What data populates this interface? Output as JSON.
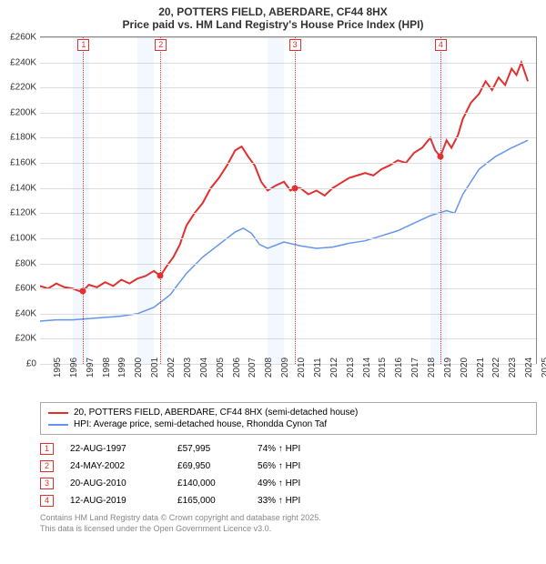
{
  "title": {
    "line1": "20, POTTERS FIELD, ABERDARE, CF44 8HX",
    "line2": "Price paid vs. HM Land Registry's House Price Index (HPI)"
  },
  "chart": {
    "type": "line",
    "background_color": "#ffffff",
    "grid_color": "#dddddd",
    "axis_color": "#888888",
    "band_color": "rgba(100,149,237,0.08)",
    "x_min": 1995,
    "x_max": 2025.5,
    "xtick_step": 1,
    "y_min": 0,
    "y_max": 260000,
    "ytick_step": 20000,
    "ytick_labels": [
      "£0",
      "£20K",
      "£40K",
      "£60K",
      "£80K",
      "£100K",
      "£120K",
      "£140K",
      "£160K",
      "£180K",
      "£200K",
      "£220K",
      "£240K",
      "£260K"
    ],
    "xtick_labels": [
      "1995",
      "1996",
      "1997",
      "1998",
      "1999",
      "2000",
      "2001",
      "2002",
      "2003",
      "2004",
      "2005",
      "2006",
      "2007",
      "2008",
      "2009",
      "2010",
      "2011",
      "2012",
      "2013",
      "2014",
      "2015",
      "2016",
      "2017",
      "2018",
      "2019",
      "2020",
      "2021",
      "2022",
      "2023",
      "2024",
      "2025"
    ],
    "series": {
      "price_paid": {
        "color": "#e03030",
        "width": 2,
        "points": [
          [
            1995,
            62000
          ],
          [
            1995.5,
            60000
          ],
          [
            1996,
            64000
          ],
          [
            1996.5,
            61000
          ],
          [
            1997,
            60000
          ],
          [
            1997.4,
            58000
          ],
          [
            1997.65,
            57995
          ],
          [
            1998,
            63000
          ],
          [
            1998.5,
            61000
          ],
          [
            1999,
            65000
          ],
          [
            1999.5,
            62000
          ],
          [
            2000,
            67000
          ],
          [
            2000.5,
            64000
          ],
          [
            2001,
            68000
          ],
          [
            2001.5,
            70000
          ],
          [
            2002,
            74000
          ],
          [
            2002.4,
            69950
          ],
          [
            2002.8,
            78000
          ],
          [
            2003.2,
            85000
          ],
          [
            2003.6,
            95000
          ],
          [
            2004,
            110000
          ],
          [
            2004.5,
            120000
          ],
          [
            2005,
            128000
          ],
          [
            2005.5,
            140000
          ],
          [
            2006,
            148000
          ],
          [
            2006.5,
            158000
          ],
          [
            2007,
            170000
          ],
          [
            2007.4,
            173000
          ],
          [
            2007.8,
            165000
          ],
          [
            2008.2,
            158000
          ],
          [
            2008.6,
            145000
          ],
          [
            2009,
            138000
          ],
          [
            2009.5,
            142000
          ],
          [
            2010,
            145000
          ],
          [
            2010.4,
            138000
          ],
          [
            2010.65,
            140000
          ],
          [
            2011,
            140000
          ],
          [
            2011.5,
            135000
          ],
          [
            2012,
            138000
          ],
          [
            2012.5,
            134000
          ],
          [
            2013,
            140000
          ],
          [
            2013.5,
            144000
          ],
          [
            2014,
            148000
          ],
          [
            2014.5,
            150000
          ],
          [
            2015,
            152000
          ],
          [
            2015.5,
            150000
          ],
          [
            2016,
            155000
          ],
          [
            2016.5,
            158000
          ],
          [
            2017,
            162000
          ],
          [
            2017.5,
            160000
          ],
          [
            2018,
            168000
          ],
          [
            2018.5,
            172000
          ],
          [
            2019,
            180000
          ],
          [
            2019.3,
            170000
          ],
          [
            2019.62,
            165000
          ],
          [
            2020,
            178000
          ],
          [
            2020.3,
            172000
          ],
          [
            2020.7,
            182000
          ],
          [
            2021,
            195000
          ],
          [
            2021.5,
            208000
          ],
          [
            2022,
            215000
          ],
          [
            2022.4,
            225000
          ],
          [
            2022.8,
            218000
          ],
          [
            2023.2,
            228000
          ],
          [
            2023.6,
            222000
          ],
          [
            2024,
            235000
          ],
          [
            2024.3,
            230000
          ],
          [
            2024.6,
            240000
          ],
          [
            2025,
            225000
          ]
        ]
      },
      "hpi": {
        "color": "#6495ed",
        "width": 1.5,
        "points": [
          [
            1995,
            34000
          ],
          [
            1996,
            35000
          ],
          [
            1997,
            35000
          ],
          [
            1998,
            36000
          ],
          [
            1999,
            37000
          ],
          [
            2000,
            38000
          ],
          [
            2001,
            40000
          ],
          [
            2002,
            45000
          ],
          [
            2003,
            55000
          ],
          [
            2004,
            72000
          ],
          [
            2005,
            85000
          ],
          [
            2006,
            95000
          ],
          [
            2007,
            105000
          ],
          [
            2007.5,
            108000
          ],
          [
            2008,
            104000
          ],
          [
            2008.5,
            95000
          ],
          [
            2009,
            92000
          ],
          [
            2010,
            97000
          ],
          [
            2011,
            94000
          ],
          [
            2012,
            92000
          ],
          [
            2013,
            93000
          ],
          [
            2014,
            96000
          ],
          [
            2015,
            98000
          ],
          [
            2016,
            102000
          ],
          [
            2017,
            106000
          ],
          [
            2018,
            112000
          ],
          [
            2019,
            118000
          ],
          [
            2020,
            122000
          ],
          [
            2020.5,
            120000
          ],
          [
            2021,
            135000
          ],
          [
            2022,
            155000
          ],
          [
            2023,
            165000
          ],
          [
            2024,
            172000
          ],
          [
            2025,
            178000
          ]
        ]
      }
    },
    "bands": [
      {
        "from": 1997,
        "to": 1998
      },
      {
        "from": 2001,
        "to": 2002
      },
      {
        "from": 2009,
        "to": 2010
      },
      {
        "from": 2019,
        "to": 2020
      }
    ],
    "sale_markers": [
      {
        "n": "1",
        "x": 1997.65,
        "y": 57995
      },
      {
        "n": "2",
        "x": 2002.4,
        "y": 69950
      },
      {
        "n": "3",
        "x": 2010.65,
        "y": 140000
      },
      {
        "n": "4",
        "x": 2019.62,
        "y": 165000
      }
    ],
    "marker_color": "#e03030",
    "label_fontsize": 10
  },
  "legend": {
    "items": [
      {
        "color": "#e03030",
        "label": "20, POTTERS FIELD, ABERDARE, CF44 8HX (semi-detached house)"
      },
      {
        "color": "#6495ed",
        "label": "HPI: Average price, semi-detached house, Rhondda Cynon Taf"
      }
    ]
  },
  "sales": [
    {
      "n": "1",
      "date": "22-AUG-1997",
      "price": "£57,995",
      "diff": "74% ↑ HPI"
    },
    {
      "n": "2",
      "date": "24-MAY-2002",
      "price": "£69,950",
      "diff": "56% ↑ HPI"
    },
    {
      "n": "3",
      "date": "20-AUG-2010",
      "price": "£140,000",
      "diff": "49% ↑ HPI"
    },
    {
      "n": "4",
      "date": "12-AUG-2019",
      "price": "£165,000",
      "diff": "33% ↑ HPI"
    }
  ],
  "footer": {
    "line1": "Contains HM Land Registry data © Crown copyright and database right 2025.",
    "line2": "This data is licensed under the Open Government Licence v3.0."
  }
}
